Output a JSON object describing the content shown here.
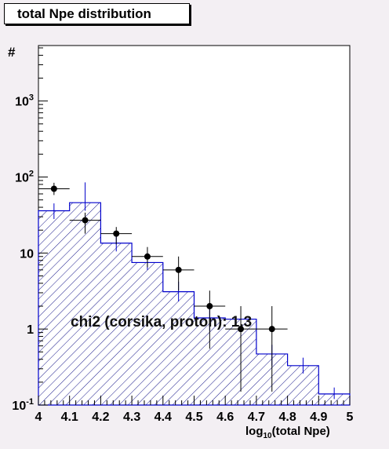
{
  "chart_data": {
    "type": "histogram",
    "title": "total Npe distribution",
    "ylabel": "#",
    "xlabel": "log",
    "xlabel_sub": "10",
    "xlabel_rest": "(total Npe)",
    "xlim": [
      4.0,
      5.0
    ],
    "ylim": [
      0.1,
      5000
    ],
    "y_scale": "log",
    "x_ticks": [
      "4",
      "4.1",
      "4.2",
      "4.3",
      "4.4",
      "4.5",
      "4.6",
      "4.7",
      "4.8",
      "4.9",
      "5"
    ],
    "y_ticks": [
      {
        "base": "10",
        "exp": "-1",
        "value": 0.1
      },
      {
        "base": "1",
        "exp": "",
        "value": 1
      },
      {
        "base": "10",
        "exp": "",
        "value": 10
      },
      {
        "base": "10",
        "exp": "2",
        "value": 100
      },
      {
        "base": "10",
        "exp": "3",
        "value": 1000
      }
    ],
    "bin_edges": [
      4.0,
      4.1,
      4.2,
      4.3,
      4.4,
      4.5,
      4.6,
      4.7,
      4.8,
      4.9,
      5.0
    ],
    "histogram": {
      "color": "#0000cc",
      "fill": "hatched",
      "values": [
        36,
        46,
        13.5,
        7.5,
        3.1,
        1.4,
        1.35,
        0.47,
        0.33,
        0.14
      ],
      "errors_low": [
        28,
        36,
        10.5,
        6.0,
        2.3,
        0.95,
        0.0,
        0.33,
        0.26,
        0.12
      ],
      "errors_high": [
        45,
        85,
        17,
        10,
        4.2,
        2.0,
        0.0,
        0.62,
        0.42,
        0.17
      ]
    },
    "data_points": {
      "color": "#000000",
      "x": [
        4.05,
        4.15,
        4.25,
        4.35,
        4.45,
        4.55,
        4.65,
        4.75
      ],
      "y": [
        70,
        27,
        18,
        9,
        6,
        2,
        1,
        1
      ],
      "y_low": [
        58,
        18,
        13,
        6.5,
        3.2,
        0.55,
        0.15,
        0.15
      ],
      "y_high": [
        84,
        34,
        22,
        12,
        9,
        3.2,
        2,
        2
      ]
    },
    "annotation": "chi2 (corsika, proton): 1.3"
  }
}
